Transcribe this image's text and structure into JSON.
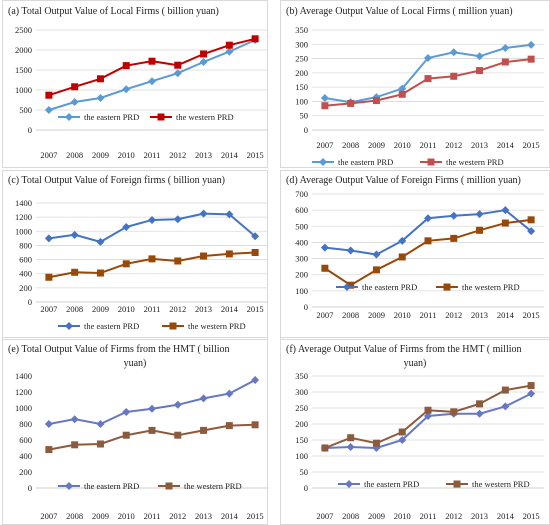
{
  "colors": {
    "eastern": "#5b9bd5",
    "eastern_f": "#4472c4",
    "western": "#c00000",
    "western_f": "#984807",
    "grid": "#d9d9d9"
  },
  "chart_data": [
    {
      "type": "line",
      "title": "(a)  Total Output Value of Local Firms ( billion yuan)",
      "x": [
        "2007",
        "2008",
        "2009",
        "2010",
        "2011",
        "2012",
        "2013",
        "2014",
        "2015"
      ],
      "ylim": [
        0,
        2500
      ],
      "yticks": [
        0,
        500,
        1000,
        1500,
        2000,
        2500
      ],
      "grid": true,
      "legend": "inside-bottom",
      "series": [
        {
          "name": "the eastern PRD",
          "color": "#5b9bd5",
          "marker": "diamond",
          "values": [
            500,
            700,
            800,
            1020,
            1220,
            1420,
            1700,
            1960,
            2250
          ]
        },
        {
          "name": "the western PRD",
          "color": "#c00000",
          "marker": "square",
          "values": [
            870,
            1080,
            1280,
            1610,
            1720,
            1620,
            1900,
            2120,
            2280
          ]
        }
      ]
    },
    {
      "type": "line",
      "title": "(b) Average Output Value of Local Firms ( million yuan)",
      "x": [
        "2007",
        "2008",
        "2009",
        "2010",
        "2011",
        "2012",
        "2013",
        "2014",
        "2015"
      ],
      "ylim": [
        0,
        350
      ],
      "yticks": [
        0,
        50,
        100,
        150,
        200,
        250,
        300,
        350
      ],
      "grid": true,
      "legend": "bottom",
      "series": [
        {
          "name": "the eastern PRD",
          "color": "#5b9bd5",
          "marker": "diamond",
          "values": [
            112,
            97,
            115,
            145,
            252,
            272,
            258,
            287,
            298
          ]
        },
        {
          "name": "the western PRD",
          "color": "#c0504d",
          "marker": "square",
          "values": [
            85,
            93,
            103,
            125,
            180,
            188,
            208,
            238,
            248
          ]
        }
      ]
    },
    {
      "type": "line",
      "title": "(c) Total Output Value of Foreign firms ( billion yuan)",
      "x": [
        "2007",
        "2008",
        "2009",
        "2010",
        "2011",
        "2012",
        "2013",
        "2014",
        "2015"
      ],
      "ylim": [
        0,
        1400
      ],
      "yticks": [
        0,
        200,
        400,
        600,
        800,
        1000,
        1200,
        1400
      ],
      "grid": true,
      "legend": "bottom",
      "series": [
        {
          "name": "the eastern PRD",
          "color": "#4472c4",
          "marker": "diamond",
          "values": [
            900,
            950,
            850,
            1060,
            1160,
            1170,
            1250,
            1240,
            930
          ]
        },
        {
          "name": "the western PRD",
          "color": "#984807",
          "marker": "square",
          "values": [
            350,
            420,
            410,
            540,
            610,
            580,
            650,
            680,
            700
          ]
        }
      ]
    },
    {
      "type": "line",
      "title": "(d) Average Output Value of Foreign Firms ( million yuan)",
      "x": [
        "2007",
        "2008",
        "2009",
        "2010",
        "2011",
        "2012",
        "2013",
        "2014",
        "2015"
      ],
      "ylim": [
        0,
        700
      ],
      "yticks": [
        0,
        100,
        200,
        300,
        400,
        500,
        600,
        700
      ],
      "grid": true,
      "legend": "inside-bottom",
      "series": [
        {
          "name": "the eastern PRD",
          "color": "#4472c4",
          "marker": "diamond",
          "values": [
            368,
            350,
            325,
            410,
            550,
            565,
            575,
            600,
            470
          ]
        },
        {
          "name": "the western PRD",
          "color": "#984807",
          "marker": "square",
          "values": [
            240,
            135,
            230,
            310,
            410,
            425,
            475,
            520,
            540
          ]
        }
      ]
    },
    {
      "type": "line",
      "title": "(e) Total Output Value of Firms from the HMT ( billion",
      "title2": "yuan)",
      "x": [
        "2007",
        "2008",
        "2009",
        "2010",
        "2011",
        "2012",
        "2013",
        "2014",
        "2015"
      ],
      "ylim": [
        0,
        1400
      ],
      "yticks": [
        0,
        200,
        400,
        600,
        800,
        1000,
        1200,
        1400
      ],
      "grid": false,
      "legend": "inside-bottom",
      "series": [
        {
          "name": "the eastern PRD",
          "color": "#6677c4",
          "marker": "diamond",
          "values": [
            800,
            860,
            800,
            950,
            990,
            1040,
            1120,
            1180,
            1350
          ]
        },
        {
          "name": "the western PRD",
          "color": "#8c5a3c",
          "marker": "square",
          "values": [
            480,
            540,
            550,
            660,
            720,
            660,
            720,
            780,
            790
          ]
        }
      ]
    },
    {
      "type": "line",
      "title": "(f) Average Output Value of  Firms from the HMT ( million",
      "title2": "yuan)",
      "x": [
        "2007",
        "2008",
        "2009",
        "2010",
        "2011",
        "2012",
        "2013",
        "2014",
        "2015"
      ],
      "ylim": [
        0,
        350
      ],
      "yticks": [
        0,
        50,
        100,
        150,
        200,
        250,
        300,
        350
      ],
      "grid": true,
      "legend": "inside-bottom",
      "series": [
        {
          "name": "the eastern PRD",
          "color": "#6677c4",
          "marker": "diamond",
          "values": [
            125,
            128,
            125,
            150,
            225,
            232,
            232,
            255,
            295
          ]
        },
        {
          "name": "the western PRD",
          "color": "#8c5a3c",
          "marker": "square",
          "values": [
            125,
            157,
            140,
            175,
            243,
            238,
            263,
            306,
            320
          ]
        }
      ]
    }
  ]
}
